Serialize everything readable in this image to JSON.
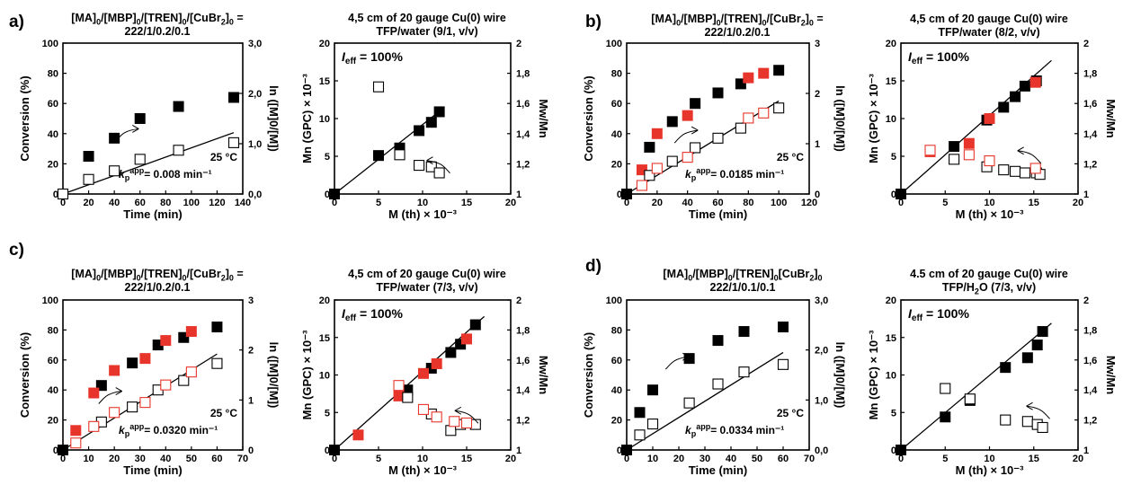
{
  "panel_labels": [
    "a)",
    "b)",
    "c)",
    "d)"
  ],
  "colors": {
    "axis": "#000000",
    "filled": "#000000",
    "red": "#e8352b",
    "open": "#000000",
    "fit": "#000000"
  },
  "conditions": [
    {
      "line1": "[MA]<sub>0</sub>/[MBP]<sub>0</sub>/[TREN]<sub>0</sub>/[CuBr<sub>2</sub>]<sub>0</sub> =",
      "line2": "222/1/0.2/0.1"
    },
    {
      "line1": "4,5 cm of 20 gauge Cu(0) wire",
      "line2": "TFP/water (9/1, v/v)"
    },
    {
      "line1": "[MA]<sub>0</sub>/[MBP]<sub>0</sub>/[TREN]<sub>0</sub>/[CuBr<sub>2</sub>]<sub>0</sub> =",
      "line2": "222/1/0.2/0.1"
    },
    {
      "line1": "4,5 cm of 20 gauge Cu(0) wire",
      "line2": "TFP/water (8/2, v/v)"
    },
    {
      "line1": "[MA]<sub>0</sub>/[MBP]<sub>0</sub>/[TREN]<sub>0</sub>/[CuBr<sub>2</sub>]<sub>0</sub> =",
      "line2": "222/1/0.2/0.1"
    },
    {
      "line1": "4,5 cm of 20 gauge Cu(0) wire",
      "line2": "TFP/water (7/3, v/v)"
    },
    {
      "line1": "[MA]<sub>0</sub>/[MBP]<sub>0</sub>/[TREN]<sub>0</sub>[CuBr<sub>2</sub>]<sub>0</sub>",
      "line2": "222/1/0.1/0.1"
    },
    {
      "line1": "4.5 cm of 20 gauge Cu(0) wire",
      "line2": "TFP/H<sub>2</sub>O (7/3, v/v)"
    }
  ],
  "chart_data": [
    {
      "type": "scatter",
      "kind": "kinetics",
      "panel": "a",
      "xlabel": "Time (min)",
      "ylabel": "Conversion (%)",
      "y2label": "ln ([M]0/[M])",
      "xlim": [
        0,
        140
      ],
      "xticks": [
        0,
        20,
        40,
        60,
        80,
        100,
        120,
        140
      ],
      "ylim": [
        0,
        100
      ],
      "yticks": [
        0,
        20,
        40,
        60,
        80,
        100
      ],
      "y2lim": [
        0,
        3
      ],
      "y2ticks": [
        "0,0",
        "1,0",
        "2,0",
        "3,0"
      ],
      "temperature": "25 °C",
      "kapp": "= 0.008 min⁻¹",
      "series": [
        {
          "marker": "filled",
          "x": [
            0,
            20,
            40,
            60,
            90,
            133
          ],
          "y": [
            0,
            25,
            37,
            50,
            58,
            64
          ]
        },
        {
          "marker": "open",
          "x": [
            0,
            20,
            40,
            60,
            90,
            133
          ],
          "y2": [
            0,
            0.29,
            0.46,
            0.69,
            0.87,
            1.02
          ]
        }
      ],
      "fit": {
        "axis": "y2",
        "x": [
          0,
          133
        ],
        "y": [
          0,
          1.22
        ]
      },
      "arrows": [
        {
          "target": "left",
          "x": 45,
          "y": 42
        }
      ]
    },
    {
      "type": "scatter",
      "kind": "mn",
      "panel": "a",
      "xlabel": "M (th) × 10⁻³",
      "ylabel": "Mn (GPC) × 10⁻³",
      "y2label": "Mw/Mn",
      "xlim": [
        0,
        20
      ],
      "xticks": [
        0,
        5,
        10,
        15,
        20
      ],
      "ylim": [
        0,
        20
      ],
      "yticks": [
        0,
        5,
        10,
        15,
        20
      ],
      "y2lim": [
        1,
        2
      ],
      "y2ticks": [
        "1",
        "1,2",
        "1,4",
        "1,6",
        "1,8",
        "2"
      ],
      "ieff": "= 100%",
      "series": [
        {
          "marker": "filled",
          "x": [
            0,
            5.0,
            7.4,
            9.6,
            11.0,
            11.9
          ],
          "y": [
            0,
            5.1,
            6.1,
            8.4,
            9.5,
            10.9
          ]
        },
        {
          "marker": "open",
          "x": [
            5.0,
            7.4,
            9.6,
            11.0,
            11.9
          ],
          "y2": [
            1.71,
            1.26,
            1.19,
            1.18,
            1.14
          ]
        }
      ],
      "fit": {
        "axis": "y",
        "x": [
          0,
          12.5
        ],
        "y": [
          0,
          11.5
        ]
      },
      "arrows": [
        {
          "target": "right",
          "x": 12.5,
          "y": 4.2
        }
      ]
    },
    {
      "type": "scatter",
      "kind": "kinetics",
      "panel": "b",
      "xlabel": "Time (min)",
      "ylabel": "Conversion (%)",
      "y2label": "ln ([M]0/[M])",
      "xlim": [
        0,
        120
      ],
      "xticks": [
        0,
        20,
        40,
        60,
        80,
        100,
        120
      ],
      "ylim": [
        0,
        100
      ],
      "yticks": [
        0,
        20,
        40,
        60,
        80,
        100
      ],
      "y2lim": [
        0,
        3
      ],
      "y2ticks": [
        "0",
        "1",
        "2",
        "3"
      ],
      "temperature": "25 °C",
      "kapp": "= 0.0185 min⁻¹",
      "series": [
        {
          "marker": "filled",
          "x": [
            0,
            15,
            30,
            45,
            60,
            75,
            100
          ],
          "y": [
            0,
            31,
            48,
            60,
            67,
            73,
            82
          ]
        },
        {
          "marker": "red",
          "x": [
            10,
            20,
            40,
            80,
            90
          ],
          "y": [
            16,
            40,
            52,
            77,
            80
          ]
        },
        {
          "marker": "open",
          "x": [
            15,
            30,
            45,
            60,
            75,
            100
          ],
          "y2": [
            0.37,
            0.65,
            0.92,
            1.11,
            1.31,
            1.71
          ]
        },
        {
          "marker": "redopen",
          "x": [
            10,
            20,
            40,
            80,
            90
          ],
          "y2": [
            0.17,
            0.51,
            0.73,
            1.51,
            1.61
          ]
        }
      ],
      "fit": {
        "axis": "y2",
        "x": [
          0,
          100
        ],
        "y": [
          0,
          1.85
        ]
      },
      "arrows": [
        {
          "target": "left",
          "x": 35,
          "y": 41
        }
      ]
    },
    {
      "type": "scatter",
      "kind": "mn",
      "panel": "b",
      "xlabel": "M (th) × 10⁻³",
      "ylabel": "Mn (GPC) × 10⁻³",
      "y2label": "Mw/Mn",
      "xlim": [
        0,
        20
      ],
      "xticks": [
        0,
        5,
        10,
        15,
        20
      ],
      "ylim": [
        0,
        20
      ],
      "yticks": [
        0,
        5,
        10,
        15,
        20
      ],
      "y2lim": [
        1,
        2
      ],
      "y2ticks": [
        "1",
        "1,2",
        "1,4",
        "1,6",
        "1,8",
        "2"
      ],
      "ieff": "= 100%",
      "series": [
        {
          "marker": "filled",
          "x": [
            0,
            6.0,
            9.7,
            11.6,
            12.9,
            14.0,
            15.3
          ],
          "y": [
            0,
            6.3,
            9.8,
            11.5,
            12.9,
            14.3,
            15.0
          ]
        },
        {
          "marker": "red",
          "x": [
            3.3,
            7.7,
            10.0,
            15.2
          ],
          "y": [
            5.6,
            6.7,
            10.0,
            14.8
          ]
        },
        {
          "marker": "open",
          "x": [
            6.0,
            9.7,
            11.6,
            12.9,
            14.0,
            15.3,
            15.7
          ],
          "y2": [
            1.23,
            1.18,
            1.16,
            1.15,
            1.14,
            1.14,
            1.13
          ]
        },
        {
          "marker": "redopen",
          "x": [
            3.3,
            7.7,
            10.0,
            15.2
          ],
          "y2": [
            1.29,
            1.26,
            1.22,
            1.17
          ]
        }
      ],
      "fit": {
        "axis": "y",
        "x": [
          0,
          17
        ],
        "y": [
          0,
          17.7
        ]
      },
      "arrows": [
        {
          "target": "right",
          "x": 15.2,
          "y": 5.5
        }
      ]
    },
    {
      "type": "scatter",
      "kind": "kinetics",
      "panel": "c",
      "xlabel": "Time (min)",
      "ylabel": "Conversion (%)",
      "y2label": "ln ([M]0/[M])",
      "xlim": [
        0,
        70
      ],
      "xticks": [
        0,
        10,
        20,
        30,
        40,
        50,
        60,
        70
      ],
      "ylim": [
        0,
        100
      ],
      "yticks": [
        0,
        20,
        40,
        60,
        80,
        100
      ],
      "y2lim": [
        0,
        3
      ],
      "y2ticks": [
        "0",
        "1",
        "2",
        "3"
      ],
      "temperature": "25 °C",
      "kapp": "= 0.0320 min⁻¹",
      "series": [
        {
          "marker": "filled",
          "x": [
            0,
            15,
            27,
            37,
            47,
            60
          ],
          "y": [
            0,
            43,
            58,
            70,
            75,
            82
          ]
        },
        {
          "marker": "red",
          "x": [
            5,
            12,
            20,
            32,
            40,
            50
          ],
          "y": [
            13,
            38,
            53,
            61,
            73,
            79
          ]
        },
        {
          "marker": "open",
          "x": [
            15,
            27,
            37,
            47,
            60
          ],
          "y2": [
            0.56,
            0.86,
            1.2,
            1.39,
            1.73
          ]
        },
        {
          "marker": "redopen",
          "x": [
            5,
            12,
            20,
            32,
            40,
            50
          ],
          "y2": [
            0.14,
            0.47,
            0.75,
            0.95,
            1.3,
            1.56
          ]
        }
      ],
      "fit": {
        "axis": "y2",
        "x": [
          0,
          60
        ],
        "y": [
          0,
          1.92
        ]
      },
      "arrows": [
        {
          "target": "left",
          "x": 16,
          "y": 38
        }
      ]
    },
    {
      "type": "scatter",
      "kind": "mn",
      "panel": "c",
      "xlabel": "M (th) × 10⁻³",
      "ylabel": "Mn (GPC) × 10⁻³",
      "y2label": "Mw/Mn",
      "xlim": [
        0,
        20
      ],
      "xticks": [
        0,
        5,
        10,
        15,
        20
      ],
      "ylim": [
        0,
        20
      ],
      "yticks": [
        0,
        5,
        10,
        15,
        20
      ],
      "y2lim": [
        1,
        2
      ],
      "y2ticks": [
        "1",
        "1,2",
        "1,4",
        "1,6",
        "1,8",
        "2"
      ],
      "ieff": "= 100%",
      "series": [
        {
          "marker": "filled",
          "x": [
            0,
            8.3,
            11.0,
            13.2,
            14.3,
            16.0
          ],
          "y": [
            0,
            8.0,
            10.9,
            13.0,
            14.1,
            16.7
          ]
        },
        {
          "marker": "red",
          "x": [
            2.7,
            7.3,
            10.1,
            11.6,
            15.0
          ],
          "y": [
            2.0,
            7.2,
            10.2,
            11.5,
            14.8
          ]
        },
        {
          "marker": "open",
          "x": [
            8.3,
            11.0,
            13.2,
            14.3,
            16.0
          ],
          "y2": [
            1.35,
            1.24,
            1.13,
            1.17,
            1.17
          ]
        },
        {
          "marker": "redopen",
          "x": [
            7.3,
            10.1,
            11.6,
            13.6,
            15.0
          ],
          "y2": [
            1.43,
            1.27,
            1.22,
            1.19,
            1.18
          ]
        }
      ],
      "fit": {
        "axis": "y",
        "x": [
          0,
          17
        ],
        "y": [
          0,
          17.8
        ]
      },
      "arrows": [
        {
          "target": "right",
          "x": 15.7,
          "y": 5.0
        }
      ]
    },
    {
      "type": "scatter",
      "kind": "kinetics",
      "panel": "d",
      "xlabel": "Time (min)",
      "ylabel": "Conversion (%)",
      "y2label": "ln ([M]0/[M])",
      "xlim": [
        0,
        70
      ],
      "xticks": [
        0,
        10,
        20,
        30,
        40,
        50,
        60,
        70
      ],
      "ylim": [
        0,
        100
      ],
      "yticks": [
        0,
        20,
        40,
        60,
        80,
        100
      ],
      "y2lim": [
        0,
        3
      ],
      "y2ticks": [
        "0,0",
        "1,0",
        "2,0",
        "3,0"
      ],
      "temperature": "25 °C",
      "kapp": "= 0.0334 min⁻¹",
      "series": [
        {
          "marker": "filled",
          "x": [
            0,
            5,
            10,
            24,
            35,
            45,
            60
          ],
          "y": [
            0,
            25,
            40,
            61,
            73,
            79,
            82
          ]
        },
        {
          "marker": "open",
          "x": [
            5,
            10,
            24,
            35,
            45,
            60
          ],
          "y2": [
            0.3,
            0.52,
            0.94,
            1.32,
            1.56,
            1.71
          ]
        }
      ],
      "fit": {
        "axis": "y2",
        "x": [
          0,
          60
        ],
        "y": [
          0,
          1.95
        ]
      },
      "arrows": [
        {
          "target": "left",
          "x": 17,
          "y": 61
        }
      ]
    },
    {
      "type": "scatter",
      "kind": "mn",
      "panel": "d",
      "xlabel": "M (th) × 10⁻³",
      "ylabel": "Mn (GPC) × 10⁻³",
      "y2label": "Mw/Mn",
      "xlim": [
        0,
        20
      ],
      "xticks": [
        0,
        5,
        10,
        15,
        20
      ],
      "ylim": [
        0,
        20
      ],
      "yticks": [
        0,
        5,
        10,
        15,
        20
      ],
      "y2lim": [
        1,
        2
      ],
      "y2ticks": [
        "1",
        "1,2",
        "1,4",
        "1,6",
        "1,8",
        "2"
      ],
      "ieff": "= 100%",
      "series": [
        {
          "marker": "filled",
          "x": [
            0,
            5.0,
            7.8,
            11.8,
            14.3,
            15.4,
            16.0
          ],
          "y": [
            0,
            4.4,
            6.6,
            11.0,
            12.3,
            14.0,
            15.8
          ]
        },
        {
          "marker": "open",
          "x": [
            5.0,
            7.8,
            11.8,
            14.3,
            15.4,
            16.0
          ],
          "y2": [
            1.41,
            1.34,
            1.2,
            1.19,
            1.17,
            1.15
          ]
        }
      ],
      "fit": {
        "axis": "y",
        "x": [
          0,
          17
        ],
        "y": [
          0,
          16.9
        ]
      },
      "arrows": [
        {
          "target": "right",
          "x": 16.2,
          "y": 5.6
        }
      ]
    }
  ]
}
